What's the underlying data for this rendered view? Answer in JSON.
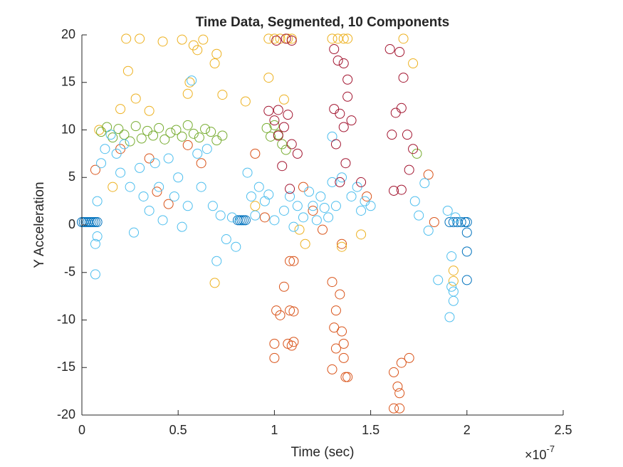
{
  "chart_data": {
    "type": "scatter",
    "title": "Time Data, Segmented, 10 Components",
    "x_label": "Time (sec)",
    "y_label": "Y Acceleration",
    "x_multiplier": {
      "base": "×10",
      "exponent": "-7"
    },
    "xlim": [
      0,
      2.5
    ],
    "ylim": [
      -20,
      20
    ],
    "xticks": [
      0,
      0.5,
      1,
      1.5,
      2,
      2.5
    ],
    "yticks": [
      -20,
      -15,
      -10,
      -5,
      0,
      5,
      10,
      15,
      20
    ],
    "grid": false,
    "series": [
      {
        "color": "#0072BD",
        "x": [
          0,
          0.01,
          0.02,
          0.03,
          0.04,
          0.05,
          0.06,
          0.07,
          0.08,
          0.81,
          0.82,
          0.83,
          0.84,
          0.85,
          1.91,
          1.93,
          1.95,
          1.97,
          1.99,
          2.0,
          2.0,
          2.0,
          2.0
        ],
        "values": [
          0.3,
          0.3,
          0.3,
          0.3,
          0.3,
          0.3,
          0.3,
          0.3,
          0.3,
          0.5,
          0.5,
          0.5,
          0.5,
          0.5,
          0.3,
          0.3,
          0.3,
          0.3,
          0.3,
          0.3,
          -0.8,
          -2.8,
          -5.8
        ]
      },
      {
        "color": "#D95319",
        "x": [
          1.0,
          1.0,
          1.01,
          1.03,
          1.05,
          1.07,
          1.09,
          1.1,
          1.08,
          1.1,
          1.08,
          1.1,
          1.3,
          1.32,
          1.31,
          1.32,
          1.36,
          1.37,
          1.38,
          1.36,
          1.35,
          1.34,
          1.3,
          1.62,
          1.65,
          1.64,
          1.62,
          1.66,
          1.7,
          1.65,
          0.07,
          0.2,
          0.35,
          0.39,
          0.45,
          0.55,
          0.62,
          0.9,
          0.95,
          1.15,
          1.2,
          1.25,
          1.35,
          1.48,
          1.8,
          1.83
        ],
        "values": [
          -14,
          -12.5,
          -9,
          -9.5,
          -6.5,
          -12.5,
          -12.7,
          -12.3,
          -9,
          -9.1,
          -3.8,
          -3.8,
          -6,
          -9,
          -10.8,
          -13,
          -14,
          -16,
          -16,
          -12.5,
          -11.2,
          -7.3,
          -15.2,
          -19.3,
          -19.3,
          -17,
          -15.5,
          -14.5,
          -14,
          -17.7,
          5.8,
          8,
          7,
          3.5,
          2.2,
          8.4,
          6.5,
          7.5,
          0.8,
          4,
          1.5,
          -0.5,
          -2,
          3,
          5.3,
          0.3
        ]
      },
      {
        "color": "#EDB120",
        "x": [
          0.23,
          0.3,
          0.42,
          0.52,
          0.58,
          0.6,
          0.63,
          0.69,
          0.7,
          0.24,
          0.28,
          0.56,
          0.55,
          0.73,
          0.85,
          0.69,
          0.16,
          0.09,
          0.2,
          0.35,
          0.97,
          1.0,
          1.03,
          1.07,
          1.09,
          1.3,
          1.33,
          1.36,
          1.38,
          1.67,
          1.72,
          1.93,
          1.93,
          0.97,
          1.05,
          1.13,
          1.16,
          1.45,
          1.35,
          0.9
        ],
        "values": [
          19.6,
          19.6,
          19.3,
          19.5,
          18.9,
          18.4,
          19.5,
          17,
          18,
          16.2,
          13.3,
          15,
          13.8,
          13.7,
          13,
          -6.1,
          4,
          10,
          12.2,
          12,
          19.6,
          19.6,
          19.6,
          19.6,
          19.6,
          19.6,
          19.6,
          19.6,
          19.6,
          19.6,
          17,
          -4.8,
          -5.9,
          15.5,
          13.2,
          -0.5,
          -2,
          -1,
          -2.3,
          2
        ]
      },
      {
        "color": "#77AC30",
        "x": [
          0.1,
          0.13,
          0.16,
          0.19,
          0.22,
          0.25,
          0.28,
          0.31,
          0.34,
          0.37,
          0.4,
          0.43,
          0.46,
          0.49,
          0.52,
          0.55,
          0.58,
          0.61,
          0.64,
          0.67,
          0.7,
          0.73,
          0.96,
          0.98,
          1.0,
          1.02,
          1.04,
          1.06,
          1.74
        ],
        "values": [
          9.8,
          10.3,
          9.2,
          10.1,
          9.5,
          8.8,
          10.4,
          9.1,
          9.9,
          9.4,
          10.2,
          9.0,
          9.7,
          10.0,
          9.3,
          10.5,
          9.6,
          9.2,
          10.1,
          9.8,
          8.9,
          9.4,
          10.2,
          9.3,
          10.5,
          9.5,
          8.5,
          7.9,
          7.5
        ]
      },
      {
        "color": "#4DBEEE",
        "x": [
          0.07,
          0.07,
          0.08,
          0.08,
          0.1,
          0.12,
          0.15,
          0.18,
          0.2,
          0.22,
          0.25,
          0.27,
          0.3,
          0.32,
          0.35,
          0.38,
          0.4,
          0.42,
          0.45,
          0.48,
          0.5,
          0.52,
          0.55,
          0.57,
          0.6,
          0.62,
          0.65,
          0.68,
          0.7,
          0.72,
          0.75,
          0.78,
          0.8,
          0.86,
          0.88,
          0.9,
          0.92,
          0.95,
          0.97,
          1.0,
          1.05,
          1.08,
          1.1,
          1.12,
          1.15,
          1.18,
          1.2,
          1.22,
          1.24,
          1.26,
          1.28,
          1.3,
          1.3,
          1.32,
          1.35,
          1.4,
          1.43,
          1.45,
          1.47,
          1.5,
          1.73,
          1.75,
          1.78,
          1.8,
          1.85,
          1.9,
          1.91,
          1.92,
          1.93,
          1.93,
          1.92,
          1.94
        ],
        "values": [
          -5.2,
          -2,
          -1.2,
          2.5,
          6.5,
          8,
          9.5,
          7.5,
          5.5,
          8.5,
          4,
          -0.8,
          6,
          3,
          1.5,
          6.5,
          4,
          0.5,
          7,
          3,
          5,
          -0.2,
          2,
          15.2,
          7.5,
          4,
          8,
          2,
          -3.8,
          1,
          -1.5,
          0.8,
          -2.3,
          5.5,
          3,
          1,
          4,
          2.5,
          3.2,
          0.5,
          1.5,
          3,
          -0.2,
          2,
          0.8,
          3.5,
          2,
          0.5,
          3,
          1.8,
          0.8,
          4.5,
          9.3,
          2,
          5,
          3,
          4,
          1.5,
          2.5,
          2,
          2.5,
          1,
          4.4,
          -0.6,
          -5.8,
          1.5,
          -9.7,
          -6.5,
          -7,
          -8,
          -3.3,
          0.8
        ]
      },
      {
        "color": "#A2142F",
        "x": [
          0.97,
          1.0,
          1.02,
          1.05,
          1.07,
          1.09,
          1.12,
          1.04,
          1.08,
          1.01,
          1.06,
          1.09,
          1.02,
          1.31,
          1.33,
          1.36,
          1.38,
          1.38,
          1.31,
          1.34,
          1.36,
          1.4,
          1.32,
          1.37,
          1.34,
          1.45,
          1.6,
          1.65,
          1.63,
          1.66,
          1.69,
          1.72,
          1.7,
          1.62,
          1.66,
          1.67,
          1.61
        ],
        "values": [
          12,
          11,
          12.1,
          10.3,
          11.6,
          8.5,
          7.5,
          6.2,
          3.8,
          19.4,
          19.6,
          19.4,
          9.4,
          18.5,
          17.3,
          17,
          15.3,
          13.5,
          12.2,
          11.7,
          10.3,
          11,
          8.5,
          6.5,
          4.5,
          4.5,
          18.5,
          18.2,
          11.8,
          12.3,
          9.5,
          8,
          5.8,
          3.6,
          3.7,
          15.5,
          9.5
        ]
      }
    ]
  }
}
